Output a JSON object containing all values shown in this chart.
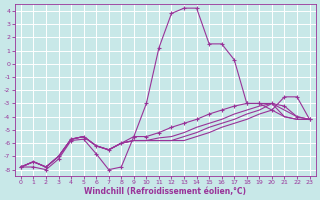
{
  "xlabel": "Windchill (Refroidissement éolien,°C)",
  "bg_color": "#c8e8e8",
  "line_color": "#993399",
  "grid_color": "#ffffff",
  "xlim_min": -0.5,
  "xlim_max": 23.5,
  "ylim_min": -8.5,
  "ylim_max": 4.5,
  "xticks": [
    0,
    1,
    2,
    3,
    4,
    5,
    6,
    7,
    8,
    9,
    10,
    11,
    12,
    13,
    14,
    15,
    16,
    17,
    18,
    19,
    20,
    21,
    22,
    23
  ],
  "yticks": [
    -8,
    -7,
    -6,
    -5,
    -4,
    -3,
    -2,
    -1,
    0,
    1,
    2,
    3,
    4
  ],
  "series_x": [
    0,
    1,
    2,
    3,
    4,
    5,
    6,
    7,
    8,
    9,
    10,
    11,
    12,
    13,
    14,
    15,
    16,
    17,
    18,
    19,
    20,
    21,
    22,
    23
  ],
  "line1_y": [
    -7.8,
    -7.8,
    -8.0,
    -7.2,
    -5.8,
    -5.7,
    -6.8,
    -8.0,
    -7.8,
    -5.5,
    -3.0,
    1.2,
    3.8,
    4.2,
    4.2,
    1.5,
    1.5,
    0.3,
    -3.0,
    -3.0,
    -3.5,
    -2.5,
    -2.5,
    -4.2
  ],
  "line2_y": [
    -7.8,
    -7.4,
    -7.8,
    -7.0,
    -5.7,
    -5.5,
    -6.2,
    -6.5,
    -6.0,
    -5.5,
    -5.5,
    -5.2,
    -4.8,
    -4.5,
    -4.2,
    -3.8,
    -3.5,
    -3.2,
    -3.0,
    -3.0,
    -3.0,
    -3.2,
    -4.0,
    -4.2
  ],
  "line3_y": [
    -7.8,
    -7.4,
    -7.8,
    -7.0,
    -5.7,
    -5.5,
    -6.2,
    -6.5,
    -6.0,
    -5.8,
    -5.8,
    -5.6,
    -5.5,
    -5.2,
    -4.8,
    -4.5,
    -4.2,
    -3.8,
    -3.5,
    -3.2,
    -3.0,
    -3.5,
    -4.0,
    -4.2
  ],
  "line4_y": [
    -7.8,
    -7.4,
    -7.8,
    -7.0,
    -5.7,
    -5.5,
    -6.2,
    -6.5,
    -6.0,
    -5.8,
    -5.8,
    -5.8,
    -5.8,
    -5.5,
    -5.2,
    -4.8,
    -4.5,
    -4.2,
    -3.8,
    -3.5,
    -3.0,
    -4.0,
    -4.2,
    -4.2
  ],
  "line5_y": [
    -7.8,
    -7.4,
    -7.8,
    -7.0,
    -5.7,
    -5.5,
    -6.2,
    -6.5,
    -6.0,
    -5.8,
    -5.8,
    -5.8,
    -5.8,
    -5.8,
    -5.5,
    -5.2,
    -4.8,
    -4.5,
    -4.2,
    -3.8,
    -3.5,
    -4.0,
    -4.2,
    -4.2
  ]
}
